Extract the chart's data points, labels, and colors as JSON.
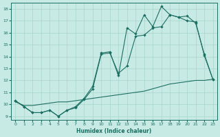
{
  "xlabel": "Humidex (Indice chaleur)",
  "bg_color": "#c8eae4",
  "grid_color": "#a8d4cc",
  "line_color": "#1a6e62",
  "xlim": [
    -0.5,
    23.5
  ],
  "ylim": [
    8.7,
    18.5
  ],
  "xticks": [
    0,
    1,
    2,
    3,
    4,
    5,
    6,
    7,
    8,
    9,
    10,
    11,
    12,
    13,
    14,
    15,
    16,
    17,
    18,
    19,
    20,
    21,
    22,
    23
  ],
  "yticks": [
    9,
    10,
    11,
    12,
    13,
    14,
    15,
    16,
    17,
    18
  ],
  "series1_x": [
    0,
    1,
    2,
    3,
    4,
    5,
    6,
    7,
    8,
    9,
    10,
    11,
    12,
    13,
    14,
    15,
    16,
    17,
    18,
    19,
    20,
    21,
    22,
    23
  ],
  "series1_y": [
    10.3,
    9.8,
    9.3,
    9.3,
    9.5,
    9.0,
    9.5,
    9.8,
    10.5,
    11.5,
    14.3,
    14.4,
    12.4,
    16.4,
    15.9,
    17.5,
    16.5,
    18.2,
    17.5,
    17.3,
    17.0,
    16.9,
    14.1,
    12.1
  ],
  "series2_x": [
    0,
    1,
    2,
    3,
    4,
    5,
    6,
    7,
    8,
    9,
    10,
    11,
    12,
    13,
    14,
    15,
    16,
    17,
    18,
    19,
    20,
    21,
    22,
    23
  ],
  "series2_y": [
    10.3,
    9.8,
    9.3,
    9.3,
    9.5,
    9.0,
    9.5,
    9.7,
    10.4,
    11.3,
    14.2,
    14.3,
    12.6,
    13.2,
    15.7,
    15.8,
    16.4,
    16.5,
    17.5,
    17.3,
    17.4,
    16.8,
    14.2,
    12.1
  ],
  "series3_x": [
    0,
    1,
    2,
    3,
    4,
    5,
    6,
    7,
    8,
    9,
    10,
    11,
    12,
    13,
    14,
    15,
    16,
    17,
    18,
    19,
    20,
    21,
    22,
    23
  ],
  "series3_y": [
    10.2,
    9.9,
    9.9,
    10.0,
    10.1,
    10.2,
    10.2,
    10.3,
    10.4,
    10.5,
    10.6,
    10.7,
    10.8,
    10.9,
    11.0,
    11.1,
    11.3,
    11.5,
    11.7,
    11.8,
    11.9,
    12.0,
    12.0,
    12.1
  ]
}
